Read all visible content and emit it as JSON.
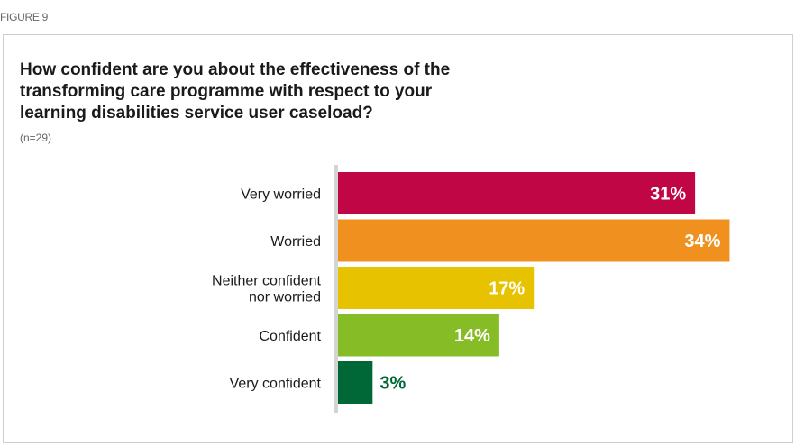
{
  "figure_label": "FIGURE 9",
  "chart_data": {
    "type": "bar",
    "orientation": "horizontal",
    "title": "How confident are you about the effectiveness of the transforming care programme with respect to your learning disabilities service user caseload?",
    "subtitle": "(n=29)",
    "categories": [
      [
        "Very worried"
      ],
      [
        "Worried"
      ],
      [
        "Neither confident",
        "nor worried"
      ],
      [
        "Confident"
      ],
      [
        "Very confident"
      ]
    ],
    "values": [
      31,
      34,
      17,
      14,
      3
    ],
    "value_suffix": "%",
    "colors": [
      "#c10645",
      "#f0901f",
      "#e6c200",
      "#86bc25",
      "#006837"
    ],
    "label_colors_inside": "#ffffff",
    "label_color_outside": "#006837",
    "xlim": [
      0,
      36
    ],
    "grid": false,
    "legend": "none"
  }
}
